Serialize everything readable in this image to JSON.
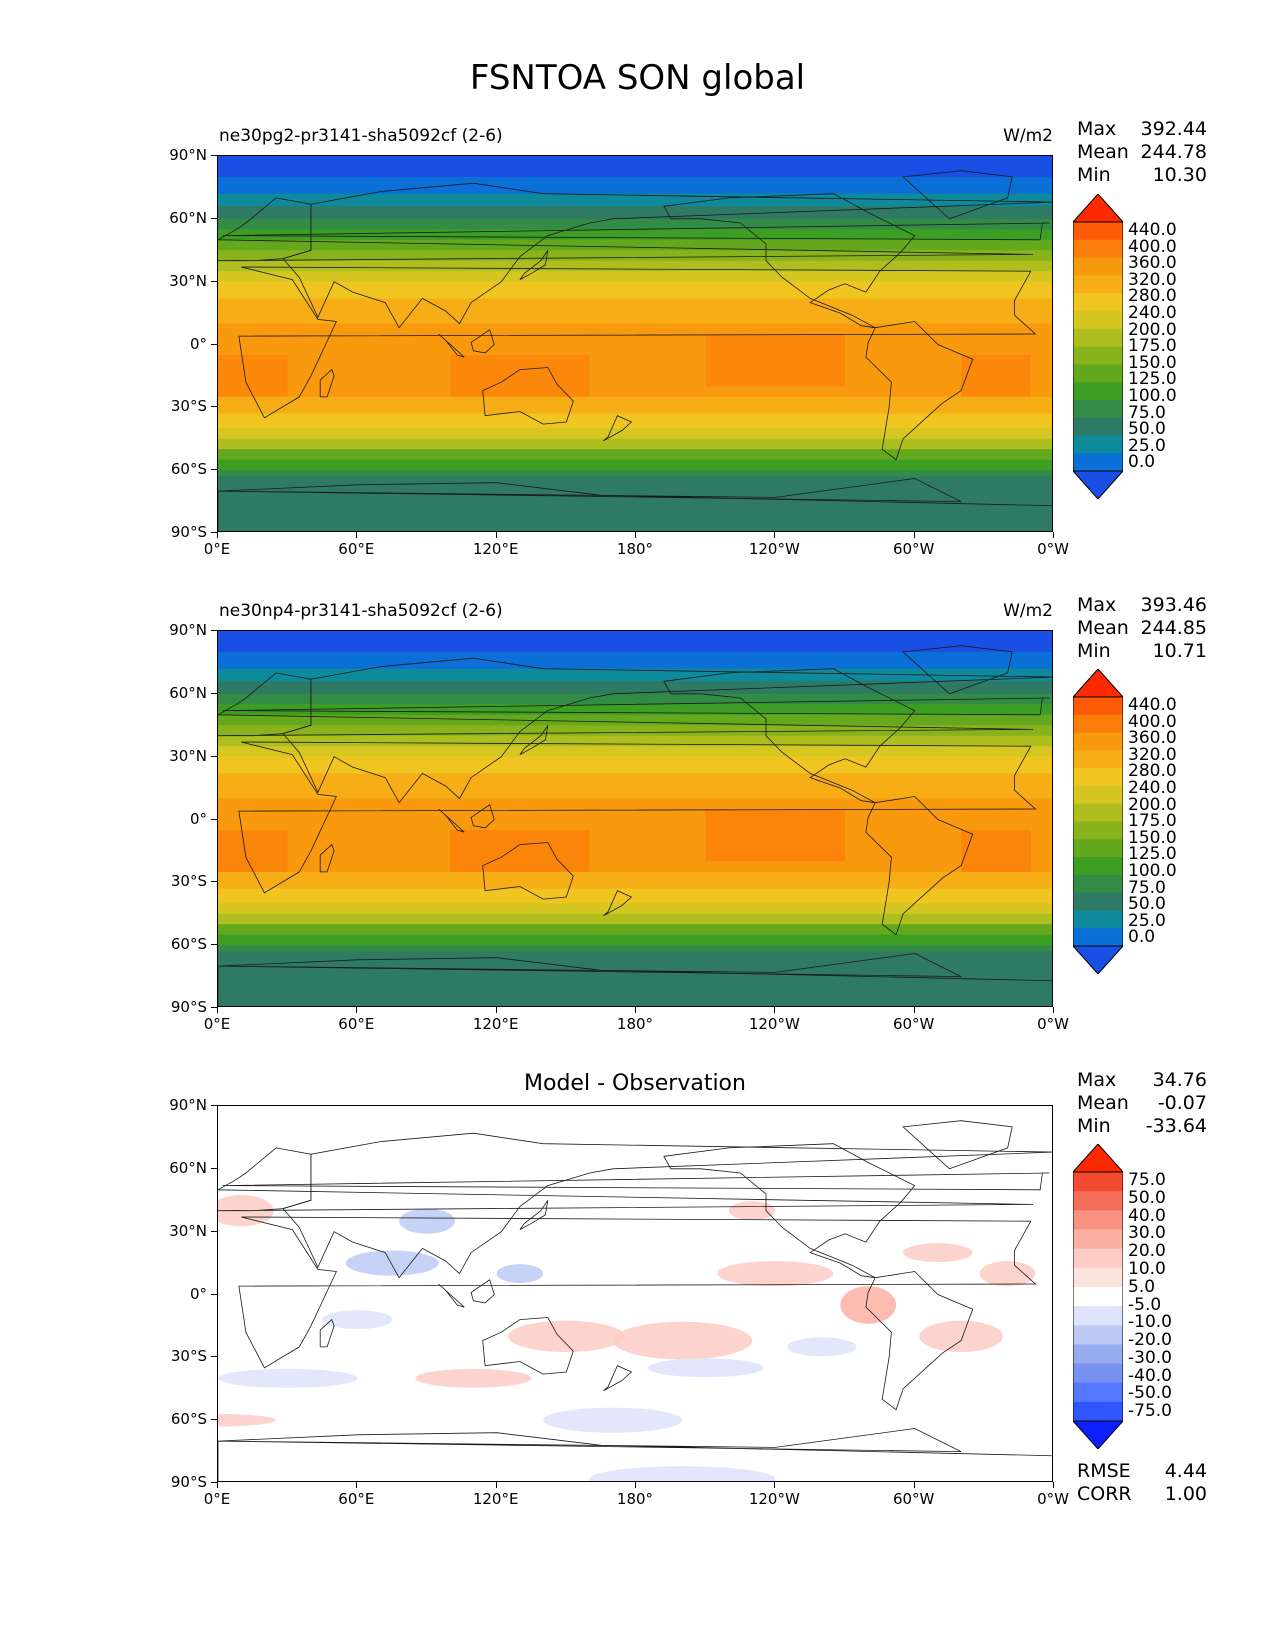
{
  "title": "FSNTOA SON global",
  "x_ticks": [
    "0°E",
    "60°E",
    "120°E",
    "180°",
    "120°W",
    "60°W",
    "0°W"
  ],
  "y_ticks": [
    "90°N",
    "60°N",
    "30°N",
    "0°",
    "30°S",
    "60°S",
    "90°S"
  ],
  "panels": [
    {
      "name": "test",
      "title_left": "ne30pg2-pr3141-sha5092cf (2-6)",
      "units": "W/m2",
      "stats": {
        "max_label": "Max",
        "max": "392.44",
        "mean_label": "Mean",
        "mean": "244.78",
        "min_label": "Min",
        "min": "10.30"
      },
      "levels": [
        "440.0",
        "400.0",
        "360.0",
        "320.0",
        "280.0",
        "240.0",
        "200.0",
        "175.0",
        "150.0",
        "125.0",
        "100.0",
        "75.0",
        "50.0",
        "25.0",
        "0.0"
      ]
    },
    {
      "name": "reference",
      "title_left": "ne30np4-pr3141-sha5092cf (2-6)",
      "units": "W/m2",
      "stats": {
        "max_label": "Max",
        "max": "393.46",
        "mean_label": "Mean",
        "mean": "244.85",
        "min_label": "Min",
        "min": "10.71"
      },
      "levels": [
        "440.0",
        "400.0",
        "360.0",
        "320.0",
        "280.0",
        "240.0",
        "200.0",
        "175.0",
        "150.0",
        "125.0",
        "100.0",
        "75.0",
        "50.0",
        "25.0",
        "0.0"
      ]
    },
    {
      "name": "difference",
      "title_center": "Model - Observation",
      "stats": {
        "max_label": "Max",
        "max": "34.76",
        "mean_label": "Mean",
        "mean": "-0.07",
        "min_label": "Min",
        "min": "-33.64"
      },
      "levels": [
        "75.0",
        "50.0",
        "40.0",
        "30.0",
        "20.0",
        "10.0",
        "5.0",
        "-5.0",
        "-10.0",
        "-20.0",
        "-30.0",
        "-40.0",
        "-50.0",
        "-75.0"
      ],
      "metrics": {
        "rmse_label": "RMSE",
        "rmse": "4.44",
        "corr_label": "CORR",
        "corr": "1.00"
      }
    }
  ],
  "colors": {
    "flux_scale": [
      "#1a4fe6",
      "#0a6fd6",
      "#0e8a9c",
      "#2f7a64",
      "#338c46",
      "#3d9e24",
      "#64a81e",
      "#88b31c",
      "#aebe1f",
      "#d6c621",
      "#f0c520",
      "#f6ad16",
      "#f99a0e",
      "#fb7d0a",
      "#fd5a06",
      "#ff2a02"
    ],
    "diff_scale": [
      "#0b1fff",
      "#3056ff",
      "#5577ff",
      "#7792f2",
      "#98abef",
      "#bccaf4",
      "#dde3fa",
      "#ffffff",
      "#fde3de",
      "#fccdc4",
      "#fbb0a4",
      "#f89282",
      "#f56e5a",
      "#f24b32",
      "#ff2a02"
    ]
  }
}
